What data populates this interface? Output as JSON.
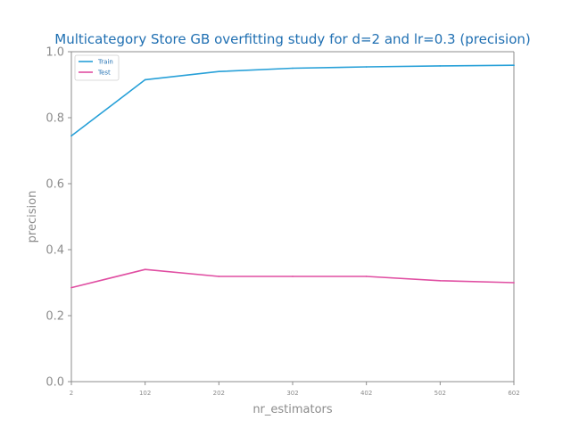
{
  "chart_data": {
    "type": "line",
    "title": "Multicategory Store GB overfitting study for d=2 and lr=0.3 (precision)",
    "xlabel": "nr_estimators",
    "ylabel": "precision",
    "x": [
      2,
      102,
      202,
      302,
      402,
      502,
      602
    ],
    "xlim": [
      2,
      602
    ],
    "ylim": [
      0,
      1
    ],
    "yticks": [
      "0.0",
      "0.2",
      "0.4",
      "0.6",
      "0.8",
      "1.0"
    ],
    "xticks": [
      "2",
      "102",
      "202",
      "302",
      "402",
      "502",
      "602"
    ],
    "grid": false,
    "legend_position": "top-left",
    "series": [
      {
        "name": "Train",
        "color": "#27a0d8",
        "values": [
          0.745,
          0.915,
          0.94,
          0.95,
          0.954,
          0.957,
          0.959
        ]
      },
      {
        "name": "Test",
        "color": "#e04ea2",
        "values": [
          0.285,
          0.34,
          0.319,
          0.319,
          0.319,
          0.306,
          0.3
        ]
      }
    ]
  }
}
